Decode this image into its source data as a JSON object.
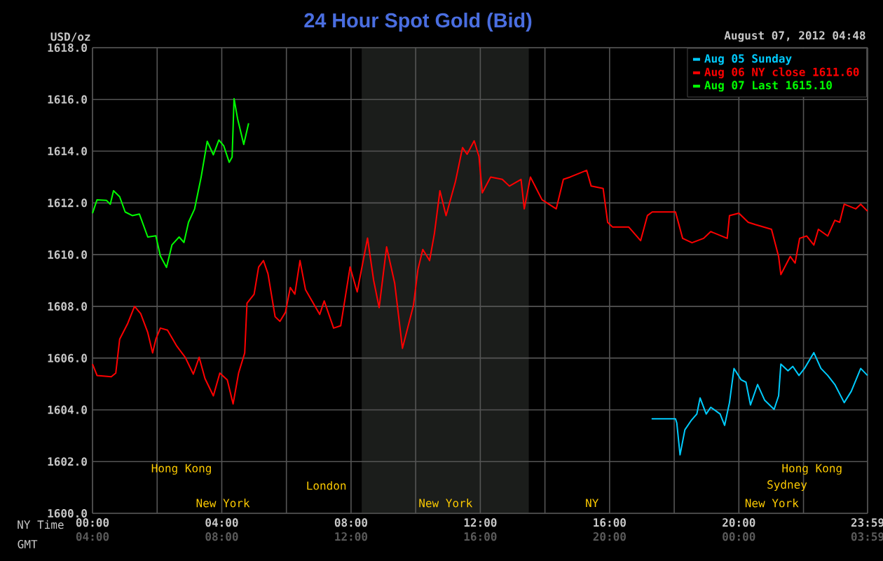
{
  "chart_data": {
    "type": "line",
    "title": "24 Hour Spot Gold (Bid)",
    "subtitle": "August 07, 2012 04:48",
    "ylabel": "USD/oz",
    "xlabel": "NY Time",
    "x2label": "GMT",
    "xlim": [
      0,
      23.9833
    ],
    "ylim": [
      1600,
      1618
    ],
    "xticks": [
      {
        "value": 0,
        "label": "00:00"
      },
      {
        "value": 2,
        "label": null
      },
      {
        "value": 4,
        "label": "04:00"
      },
      {
        "value": 6,
        "label": null
      },
      {
        "value": 8,
        "label": "08:00"
      },
      {
        "value": 10,
        "label": null
      },
      {
        "value": 12,
        "label": "12:00"
      },
      {
        "value": 14,
        "label": null
      },
      {
        "value": 16,
        "label": "16:00"
      },
      {
        "value": 18,
        "label": null
      },
      {
        "value": 20,
        "label": "20:00"
      },
      {
        "value": 22,
        "label": null
      },
      {
        "value": 23.9833,
        "label": "23:59"
      }
    ],
    "x2lim": [
      "2012-08-06T04:00",
      "2012-08-07T03:59"
    ],
    "x2ticks": [
      {
        "value": "2012-08-06T04:00",
        "label": "04:00"
      },
      {
        "value": "2012-08-06T08:00",
        "label": "08:00"
      },
      {
        "value": "2012-08-06T12:00",
        "label": "12:00"
      },
      {
        "value": "2012-08-06T16:00",
        "label": "16:00"
      },
      {
        "value": "2012-08-06T20:00",
        "label": "20:00"
      },
      {
        "value": "2012-08-07T00:00",
        "label": "00:00"
      },
      {
        "value": "2012-08-07T03:59",
        "label": "03:59"
      }
    ],
    "yticks": [
      {
        "value": 1600,
        "label": "1600.0"
      },
      {
        "value": 1602,
        "label": "1602.0"
      },
      {
        "value": 1604,
        "label": "1604.0"
      },
      {
        "value": 1606,
        "label": "1606.0"
      },
      {
        "value": 1608,
        "label": "1608.0"
      },
      {
        "value": 1610,
        "label": "1610.0"
      },
      {
        "value": 1612,
        "label": "1612.0"
      },
      {
        "value": 1614,
        "label": "1614.0"
      },
      {
        "value": 1616,
        "label": "1616.0"
      },
      {
        "value": 1618,
        "label": "1618.0"
      }
    ],
    "grid": true,
    "legend": "top right",
    "bands": [
      {
        "axis": "x",
        "from": 8.33,
        "to": 13.5,
        "color": "#1b1d1b"
      }
    ],
    "annotations": [
      "Hong Kong",
      "Hong Kong",
      "London",
      "Sydney",
      "New York",
      "New York",
      "NY",
      "New York"
    ],
    "series": [
      {
        "name": "Aug 05 Sunday",
        "color": "#00ccff",
        "x": [
          17.3,
          18.04,
          18.08,
          18.18,
          18.33,
          18.52,
          18.7,
          18.8,
          18.99,
          19.13,
          19.42,
          19.56,
          19.71,
          19.85,
          20.07,
          20.22,
          20.36,
          20.58,
          20.8,
          21.09,
          21.23,
          21.3,
          21.52,
          21.67,
          21.86,
          22.03,
          22.32,
          22.54,
          22.75,
          22.97,
          23.26,
          23.48,
          23.77,
          23.98
        ],
        "values": [
          1603.65,
          1603.65,
          1603.49,
          1602.26,
          1603.23,
          1603.58,
          1603.84,
          1604.46,
          1603.84,
          1604.1,
          1603.84,
          1603.4,
          1604.28,
          1605.6,
          1605.16,
          1605.07,
          1604.19,
          1604.98,
          1604.37,
          1604.02,
          1604.54,
          1605.77,
          1605.51,
          1605.68,
          1605.33,
          1605.6,
          1606.21,
          1605.6,
          1605.33,
          1604.98,
          1604.28,
          1604.72,
          1605.6,
          1605.33
        ]
      },
      {
        "name": "Aug 06 NY close 1611.60",
        "color": "#ff0000",
        "x": [
          0,
          0.14,
          0.58,
          0.72,
          0.84,
          1.09,
          1.3,
          1.49,
          1.71,
          1.86,
          1.96,
          2.1,
          2.32,
          2.61,
          2.87,
          3.12,
          3.3,
          3.48,
          3.74,
          3.94,
          4.17,
          4.35,
          4.52,
          4.71,
          4.78,
          5.0,
          5.14,
          5.29,
          5.43,
          5.65,
          5.8,
          5.97,
          6.12,
          6.26,
          6.42,
          6.59,
          7.03,
          7.17,
          7.46,
          7.68,
          7.97,
          8.19,
          8.51,
          8.7,
          8.87,
          9.1,
          9.35,
          9.59,
          9.93,
          10.07,
          10.22,
          10.43,
          10.58,
          10.75,
          10.94,
          11.23,
          11.45,
          11.59,
          11.81,
          11.96,
          12.06,
          12.32,
          12.68,
          12.9,
          13.26,
          13.36,
          13.55,
          13.91,
          14.35,
          14.57,
          14.78,
          15.29,
          15.43,
          15.8,
          15.94,
          16.09,
          16.59,
          16.96,
          17.17,
          17.32,
          18.04,
          18.26,
          18.55,
          18.91,
          19.13,
          19.64,
          19.71,
          20.0,
          20.29,
          20.51,
          21.01,
          21.23,
          21.3,
          21.59,
          21.74,
          21.88,
          22.1,
          22.32,
          22.46,
          22.75,
          22.97,
          23.12,
          23.26,
          23.62,
          23.77,
          23.98
        ],
        "values": [
          1605.77,
          1605.33,
          1605.28,
          1605.42,
          1606.73,
          1607.34,
          1608.0,
          1607.72,
          1606.99,
          1606.2,
          1606.73,
          1607.16,
          1607.08,
          1606.46,
          1606.03,
          1605.38,
          1606.03,
          1605.21,
          1604.54,
          1605.42,
          1605.16,
          1604.23,
          1605.42,
          1606.2,
          1608.12,
          1608.47,
          1609.52,
          1609.77,
          1609.26,
          1607.6,
          1607.42,
          1607.77,
          1608.73,
          1608.47,
          1609.77,
          1608.65,
          1607.69,
          1608.21,
          1607.16,
          1607.25,
          1609.52,
          1608.56,
          1610.64,
          1609.0,
          1607.95,
          1610.3,
          1608.9,
          1606.38,
          1608.03,
          1609.43,
          1610.2,
          1609.77,
          1610.82,
          1612.47,
          1611.51,
          1612.82,
          1614.14,
          1613.88,
          1614.4,
          1613.79,
          1612.39,
          1613.0,
          1612.91,
          1612.65,
          1612.91,
          1611.77,
          1613.0,
          1612.12,
          1611.77,
          1612.91,
          1613.0,
          1613.26,
          1612.65,
          1612.56,
          1611.25,
          1611.07,
          1611.07,
          1610.54,
          1611.51,
          1611.65,
          1611.65,
          1610.63,
          1610.46,
          1610.63,
          1610.89,
          1610.63,
          1611.51,
          1611.6,
          1611.25,
          1611.16,
          1610.98,
          1609.93,
          1609.23,
          1609.93,
          1609.67,
          1610.63,
          1610.72,
          1610.37,
          1610.98,
          1610.72,
          1611.33,
          1611.25,
          1611.95,
          1611.77,
          1611.95,
          1611.68
        ]
      },
      {
        "name": "Aug 07 Last 1615.10",
        "color": "#00ff00",
        "x": [
          0,
          0.14,
          0.43,
          0.55,
          0.65,
          0.84,
          1.01,
          1.23,
          1.45,
          1.71,
          1.96,
          2.1,
          2.29,
          2.46,
          2.68,
          2.83,
          2.97,
          3.16,
          3.36,
          3.55,
          3.74,
          3.91,
          4.06,
          4.23,
          4.32,
          4.38,
          4.49,
          4.68,
          4.83
        ],
        "values": [
          1611.6,
          1612.12,
          1612.1,
          1611.95,
          1612.47,
          1612.24,
          1611.65,
          1611.51,
          1611.57,
          1610.68,
          1610.73,
          1609.95,
          1609.51,
          1610.38,
          1610.68,
          1610.47,
          1611.25,
          1611.77,
          1612.99,
          1614.38,
          1613.86,
          1614.43,
          1614.21,
          1613.57,
          1613.77,
          1616.03,
          1615.25,
          1614.26,
          1615.08
        ]
      }
    ]
  }
}
